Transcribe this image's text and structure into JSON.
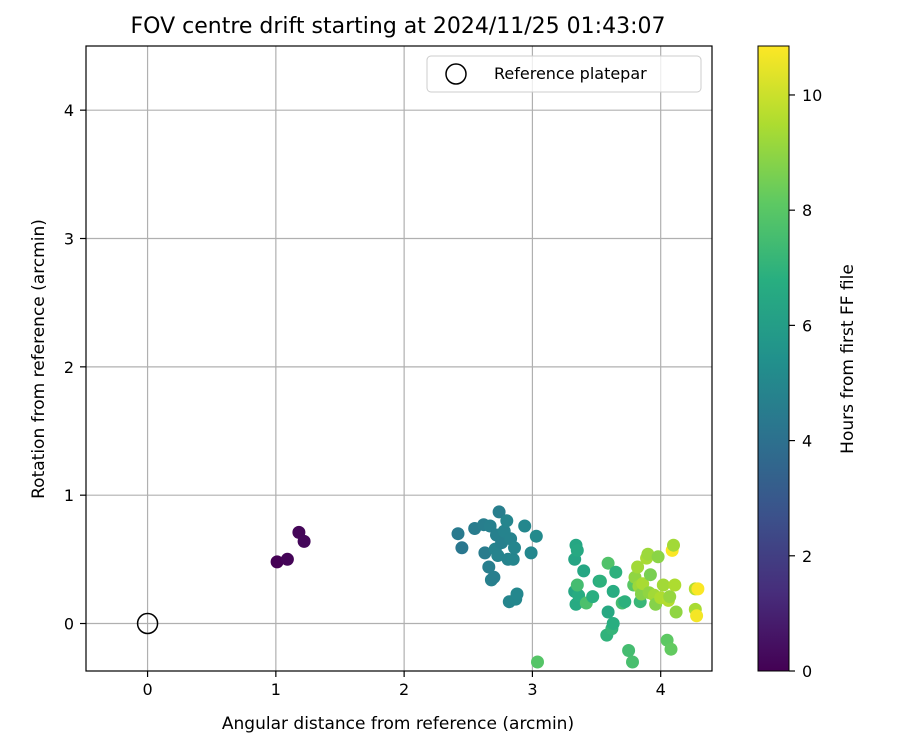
{
  "chart_data": {
    "type": "scatter",
    "title": "FOV centre drift starting at 2024/11/25 01:43:07",
    "xlabel": "Angular distance from reference (arcmin)",
    "ylabel": "Rotation from reference (arcmin)",
    "xlim": [
      -0.48,
      4.4
    ],
    "ylim": [
      -0.37,
      4.5
    ],
    "xticks": [
      "0",
      "1",
      "2",
      "3",
      "4"
    ],
    "yticks": [
      "0",
      "1",
      "2",
      "3",
      "4"
    ],
    "grid": true,
    "legend": {
      "placement": "top-right",
      "entries": [
        "Reference platepar"
      ]
    },
    "colorbar": {
      "label": "Hours from first FF file",
      "ticks": [
        "0",
        "2",
        "4",
        "6",
        "8",
        "10"
      ],
      "range": [
        0,
        10.85
      ],
      "colormap": "viridis"
    },
    "reference": {
      "x": 0,
      "y": 0,
      "label": "Reference platepar"
    },
    "points": [
      [
        1.01,
        0.48,
        0.0
      ],
      [
        1.09,
        0.5,
        0.1
      ],
      [
        1.18,
        0.71,
        0.15
      ],
      [
        1.22,
        0.64,
        0.2
      ],
      [
        2.42,
        0.7,
        4.4
      ],
      [
        2.45,
        0.59,
        4.3
      ],
      [
        2.55,
        0.74,
        4.5
      ],
      [
        2.62,
        0.77,
        4.6
      ],
      [
        2.63,
        0.55,
        4.5
      ],
      [
        2.66,
        0.44,
        4.6
      ],
      [
        2.67,
        0.76,
        4.7
      ],
      [
        2.68,
        0.34,
        4.7
      ],
      [
        2.7,
        0.36,
        4.6
      ],
      [
        2.71,
        0.58,
        4.8
      ],
      [
        2.72,
        0.69,
        4.7
      ],
      [
        2.73,
        0.53,
        4.8
      ],
      [
        2.74,
        0.87,
        4.6
      ],
      [
        2.76,
        0.63,
        4.7
      ],
      [
        2.78,
        0.72,
        4.8
      ],
      [
        2.8,
        0.8,
        4.9
      ],
      [
        2.81,
        0.5,
        4.8
      ],
      [
        2.82,
        0.17,
        4.9
      ],
      [
        2.83,
        0.66,
        4.8
      ],
      [
        2.85,
        0.5,
        4.9
      ],
      [
        2.86,
        0.59,
        4.9
      ],
      [
        2.87,
        0.19,
        5.0
      ],
      [
        2.88,
        0.23,
        5.0
      ],
      [
        2.94,
        0.76,
        5.0
      ],
      [
        2.99,
        0.55,
        5.0
      ],
      [
        3.03,
        0.68,
        5.1
      ],
      [
        3.33,
        0.25,
        6.4
      ],
      [
        3.33,
        0.5,
        6.3
      ],
      [
        3.34,
        0.61,
        6.4
      ],
      [
        3.35,
        0.57,
        6.5
      ],
      [
        3.34,
        0.15,
        6.6
      ],
      [
        3.36,
        0.22,
        6.7
      ],
      [
        3.35,
        0.3,
        7.5
      ],
      [
        3.4,
        0.41,
        6.4
      ],
      [
        3.42,
        0.16,
        7.7
      ],
      [
        3.47,
        0.21,
        6.8
      ],
      [
        3.52,
        0.33,
        6.6
      ],
      [
        3.53,
        0.33,
        6.9
      ],
      [
        3.58,
        -0.09,
        7.0
      ],
      [
        3.59,
        0.09,
        6.5
      ],
      [
        3.59,
        0.47,
        7.8
      ],
      [
        3.62,
        -0.04,
        7.1
      ],
      [
        3.63,
        0.0,
        6.8
      ],
      [
        3.63,
        0.25,
        6.7
      ],
      [
        3.65,
        0.4,
        6.9
      ],
      [
        3.7,
        0.16,
        7.5
      ],
      [
        3.72,
        0.17,
        6.9
      ],
      [
        3.75,
        -0.21,
        7.5
      ],
      [
        3.78,
        -0.3,
        7.6
      ],
      [
        3.79,
        0.3,
        8.0
      ],
      [
        3.8,
        0.36,
        9.0
      ],
      [
        3.82,
        0.44,
        9.3
      ],
      [
        3.83,
        0.29,
        9.2
      ],
      [
        3.84,
        0.17,
        7.2
      ],
      [
        3.85,
        0.23,
        8.8
      ],
      [
        3.86,
        0.31,
        9.4
      ],
      [
        3.89,
        0.51,
        9.4
      ],
      [
        3.9,
        0.54,
        9.2
      ],
      [
        3.91,
        0.24,
        9.0
      ],
      [
        3.92,
        0.38,
        8.6
      ],
      [
        3.95,
        0.22,
        9.3
      ],
      [
        3.96,
        0.15,
        8.8
      ],
      [
        3.98,
        0.52,
        8.9
      ],
      [
        4.0,
        0.2,
        9.5
      ],
      [
        4.02,
        0.3,
        9.3
      ],
      [
        4.05,
        -0.13,
        8.1
      ],
      [
        4.06,
        0.18,
        9.6
      ],
      [
        4.07,
        0.21,
        9.1
      ],
      [
        4.08,
        -0.2,
        8.2
      ],
      [
        4.09,
        0.57,
        10.8
      ],
      [
        4.1,
        0.61,
        9.3
      ],
      [
        4.11,
        0.3,
        9.5
      ],
      [
        4.12,
        0.09,
        9.0
      ],
      [
        4.27,
        0.27,
        9.6
      ],
      [
        4.27,
        0.11,
        9.4
      ],
      [
        4.28,
        0.06,
        10.7
      ],
      [
        4.29,
        0.27,
        10.8
      ],
      [
        3.04,
        -0.3,
        7.9
      ]
    ]
  }
}
